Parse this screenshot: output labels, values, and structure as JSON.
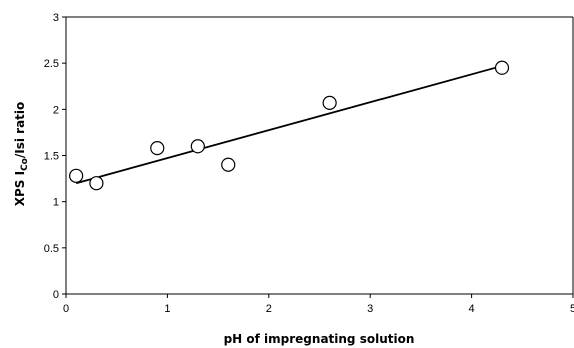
{
  "chart_data": {
    "type": "scatter",
    "xlabel": "pH of impregnating solution",
    "ylabel": {
      "prefix": "XPS I",
      "subscript": "Co",
      "suffix": "/Isi ratio"
    },
    "xlim": [
      0,
      5
    ],
    "ylim": [
      0,
      3
    ],
    "x_ticks": [
      "0",
      "1",
      "2",
      "3",
      "4",
      "5"
    ],
    "y_ticks": [
      "0",
      "0.5",
      "1",
      "1.5",
      "2",
      "2.5",
      "3"
    ],
    "grid": false,
    "legend": "none",
    "series": [
      {
        "marker": "open-circle",
        "points": [
          {
            "x": 0.1,
            "y": 1.28
          },
          {
            "x": 0.3,
            "y": 1.2
          },
          {
            "x": 0.9,
            "y": 1.58
          },
          {
            "x": 1.3,
            "y": 1.6
          },
          {
            "x": 1.6,
            "y": 1.4
          },
          {
            "x": 2.6,
            "y": 2.07
          },
          {
            "x": 4.3,
            "y": 2.45
          }
        ]
      }
    ],
    "trendline": {
      "type": "linear",
      "from": {
        "x": 0.1,
        "y": 1.2
      },
      "to": {
        "x": 4.3,
        "y": 2.47
      }
    },
    "colors": {
      "axis": "#000000",
      "marker": "#000000",
      "trendline": "#000000"
    }
  }
}
